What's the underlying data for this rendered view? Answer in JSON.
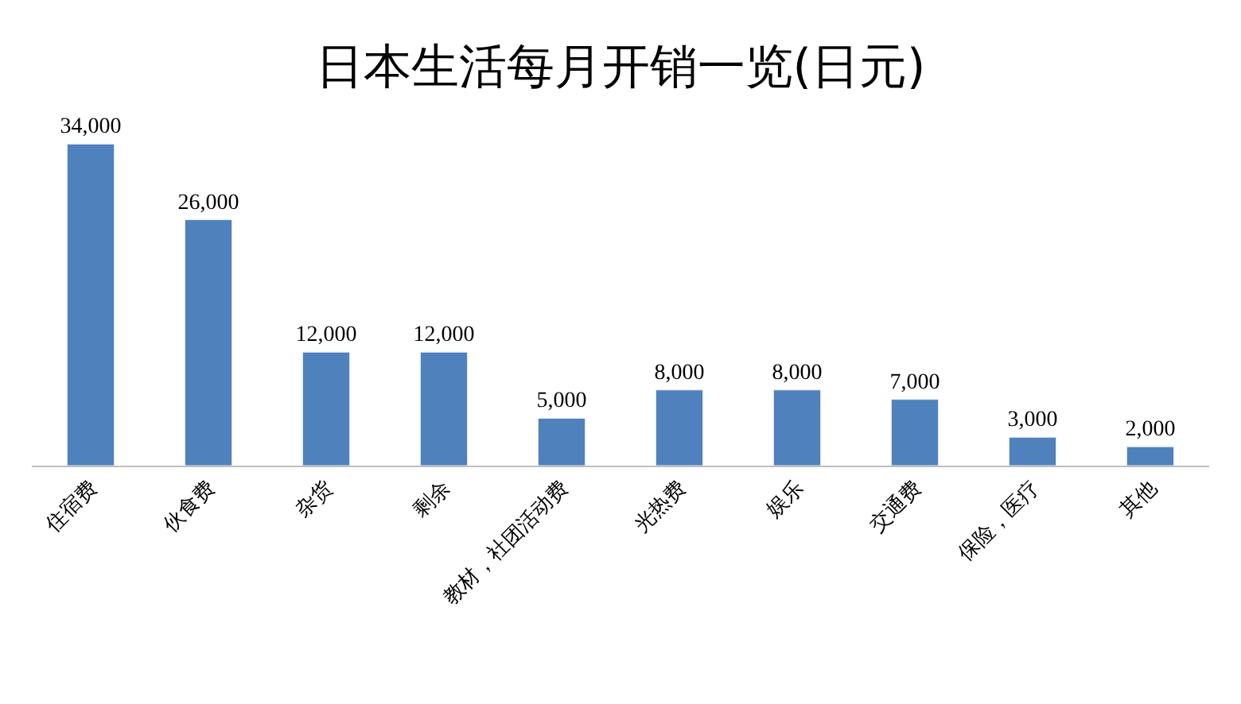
{
  "chart_data": {
    "type": "bar",
    "title": "日本生活每月开销一览(日元)",
    "categories": [
      "住宿费",
      "伙食费",
      "杂货",
      "剩余",
      "教材，社团活动费",
      "光热费",
      "娱乐",
      "交通费",
      "保险，医疗",
      "其他"
    ],
    "values": [
      34000,
      26000,
      12000,
      12000,
      5000,
      8000,
      8000,
      7000,
      3000,
      2000
    ],
    "value_labels": [
      "34,000",
      "26,000",
      "12,000",
      "12,000",
      "5,000",
      "8,000",
      "8,000",
      "7,000",
      "3,000",
      "2,000"
    ],
    "color": "#4f81bd"
  }
}
